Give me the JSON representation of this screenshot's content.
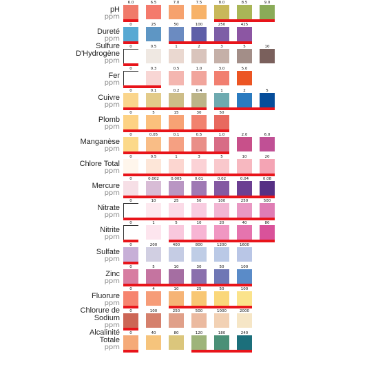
{
  "rows": [
    {
      "name": "pH",
      "unit": "ppm",
      "values": [
        "6.0",
        "6.5",
        "7.0",
        "7.5",
        "8.0",
        "8.5",
        "9.0"
      ],
      "colors": [
        "#f07a6a",
        "#f47a6c",
        "#f6a26e",
        "#f7b268",
        "#c8b85a",
        "#a9b657",
        "#8aab58"
      ],
      "optimal_range": [
        "6.0",
        "6.0"
      ],
      "optimal_range_2": [
        "8.0",
        "9.0"
      ]
    },
    {
      "name": "Dureté",
      "unit": "ppm",
      "values": [
        "0",
        "25",
        "50",
        "100",
        "250",
        "425"
      ],
      "colors": [
        "#58a9d3",
        "#5e96c4",
        "#6b8bc1",
        "#5e5fa8",
        "#7d5ea6",
        "#8c56a3"
      ],
      "optimal_range": [
        "0",
        "0"
      ],
      "optimal_range_2": [
        "50",
        "425"
      ]
    },
    {
      "name": "Sulfure D'Hydrogène",
      "unit": "ppm",
      "values": [
        "0",
        "0.5",
        "1",
        "2",
        "3",
        "5",
        "10"
      ],
      "colors": [
        "#ffffff",
        "#efe8e2",
        "#ead8d0",
        "#d9c4bc",
        "#c5b0a8",
        "#a38e88",
        "#7a605c"
      ],
      "optimal_range": [
        "0",
        "0"
      ]
    },
    {
      "name": "Fer",
      "unit": "ppm",
      "values": [
        "0",
        "0.3",
        "0.5",
        "1.0",
        "3.0",
        "5.0"
      ],
      "colors": [
        "#ffffff",
        "#f8d6d4",
        "#f4b6b0",
        "#f1a59c",
        "#f17f70",
        "#ec5523"
      ],
      "optimal_range": [
        "0",
        "0.3"
      ]
    },
    {
      "name": "Cuivre",
      "unit": "ppm",
      "values": [
        "0",
        "0.1",
        "0.2",
        "0.4",
        "1",
        "2",
        "5"
      ],
      "colors": [
        "#fad58c",
        "#e3cb8a",
        "#cdbd88",
        "#bcb488",
        "#6eaab0",
        "#2b7bbf",
        "#064d9a"
      ],
      "optimal_range": [
        "0",
        "0.4"
      ],
      "optimal_range_2": [
        "1",
        "5"
      ]
    },
    {
      "name": "Plomb",
      "unit": "ppm",
      "values": [
        "0",
        "5",
        "15",
        "30",
        "50"
      ],
      "colors": [
        "#fdd284",
        "#fbc07c",
        "#f7a274",
        "#f1826f",
        "#e8695f"
      ],
      "optimal_range": [
        "0",
        "50"
      ]
    },
    {
      "name": "Manganèse",
      "unit": "ppm",
      "values": [
        "0",
        "0.05",
        "0.1",
        "0.5",
        "1.0",
        "2.0",
        "6.0"
      ],
      "colors": [
        "#fcd98a",
        "#f9bd86",
        "#f5a082",
        "#e98e88",
        "#d86c86",
        "#c8508a",
        "#c05095"
      ],
      "optimal_range": [
        "0",
        "1.0"
      ]
    },
    {
      "name": "Chlore Total",
      "unit": "ppm",
      "values": [
        "0",
        "0.5",
        "1",
        "3",
        "5",
        "10",
        "20"
      ],
      "colors": [
        "#fff6ec",
        "#fde6d8",
        "#fcd6d0",
        "#fbd2d6",
        "#f9c8cc",
        "#f7b8c0",
        "#f4a4b4"
      ],
      "optimal_range": [
        "0",
        "20"
      ]
    },
    {
      "name": "Mercure",
      "unit": "ppm",
      "values": [
        "0",
        "0.002",
        "0.005",
        "0.01",
        "0.02",
        "0.04",
        "0.08"
      ],
      "colors": [
        "#f6dfe6",
        "#d8bcd6",
        "#b996c3",
        "#9f79b4",
        "#8459a2",
        "#6c3f92",
        "#562f84"
      ],
      "optimal_range": [
        "0",
        "0.08"
      ]
    },
    {
      "name": "Nitrate",
      "unit": "ppm",
      "values": [
        "0",
        "10",
        "25",
        "50",
        "100",
        "250",
        "500"
      ],
      "colors": [
        "#ffffff",
        "#fde9ef",
        "#fbdbe7",
        "#f8cce0",
        "#f2b6d3",
        "#e998c3",
        "#df7db4"
      ],
      "optimal_range": [
        "0",
        "500"
      ]
    },
    {
      "name": "Nitrite",
      "unit": "ppm",
      "values": [
        "0",
        "1",
        "5",
        "10",
        "20",
        "40",
        "80"
      ],
      "colors": [
        "#ffffff",
        "#fde5ee",
        "#f9c8dd",
        "#f7b5d4",
        "#f097c2",
        "#e574ae",
        "#d9529a"
      ],
      "optimal_range": [
        "0",
        "0"
      ],
      "optimal_range_2": [
        "5",
        "80"
      ]
    },
    {
      "name": "Sulfate",
      "unit": "ppm",
      "values": [
        "0",
        "200",
        "400",
        "800",
        "1200",
        "1600"
      ],
      "colors": [
        "#c7afd7",
        "#d1cfe2",
        "#c5cce4",
        "#bfcde6",
        "#bac9e6",
        "#b9c6e6"
      ],
      "optimal_range": [
        "0",
        "0"
      ]
    },
    {
      "name": "Zinc",
      "unit": "ppm",
      "values": [
        "0",
        "5",
        "10",
        "30",
        "50",
        "100"
      ],
      "colors": [
        "#d77da1",
        "#c574a0",
        "#a56ea2",
        "#8a70ad",
        "#6f77b5",
        "#5a8bc8"
      ],
      "optimal_range": [
        "0",
        "100"
      ]
    },
    {
      "name": "Fluorure",
      "unit": "ppm",
      "values": [
        "0",
        "4",
        "10",
        "25",
        "50",
        "100"
      ],
      "colors": [
        "#f6846f",
        "#f69c78",
        "#f6b476",
        "#f8c774",
        "#fad77a",
        "#fbe38b"
      ],
      "optimal_range": [
        "0",
        "0"
      ],
      "optimal_range_2": [
        "10",
        "100"
      ]
    },
    {
      "name": "Chlorure de Sodium",
      "unit": "ppm",
      "values": [
        "0",
        "100",
        "250",
        "500",
        "1000",
        "2000"
      ],
      "colors": [
        "#cc6655",
        "#d5806c",
        "#e0a089",
        "#ebbaa0",
        "#f2d1b4",
        "#f6e6c6"
      ],
      "optimal_range": [
        "0",
        "0"
      ]
    },
    {
      "name": "Alcalinité Totale",
      "unit": "ppm",
      "values": [
        "0",
        "40",
        "80",
        "120",
        "180",
        "240"
      ],
      "colors": [
        "#f5aa78",
        "#f6c47c",
        "#dbc67c",
        "#9eb47a",
        "#4a9077",
        "#1c6f7b"
      ],
      "optimal_range": [
        "0",
        "0"
      ],
      "optimal_range_2": [
        "120",
        "240"
      ]
    }
  ],
  "accent_colors": {
    "range_bar": "#e8141a"
  }
}
